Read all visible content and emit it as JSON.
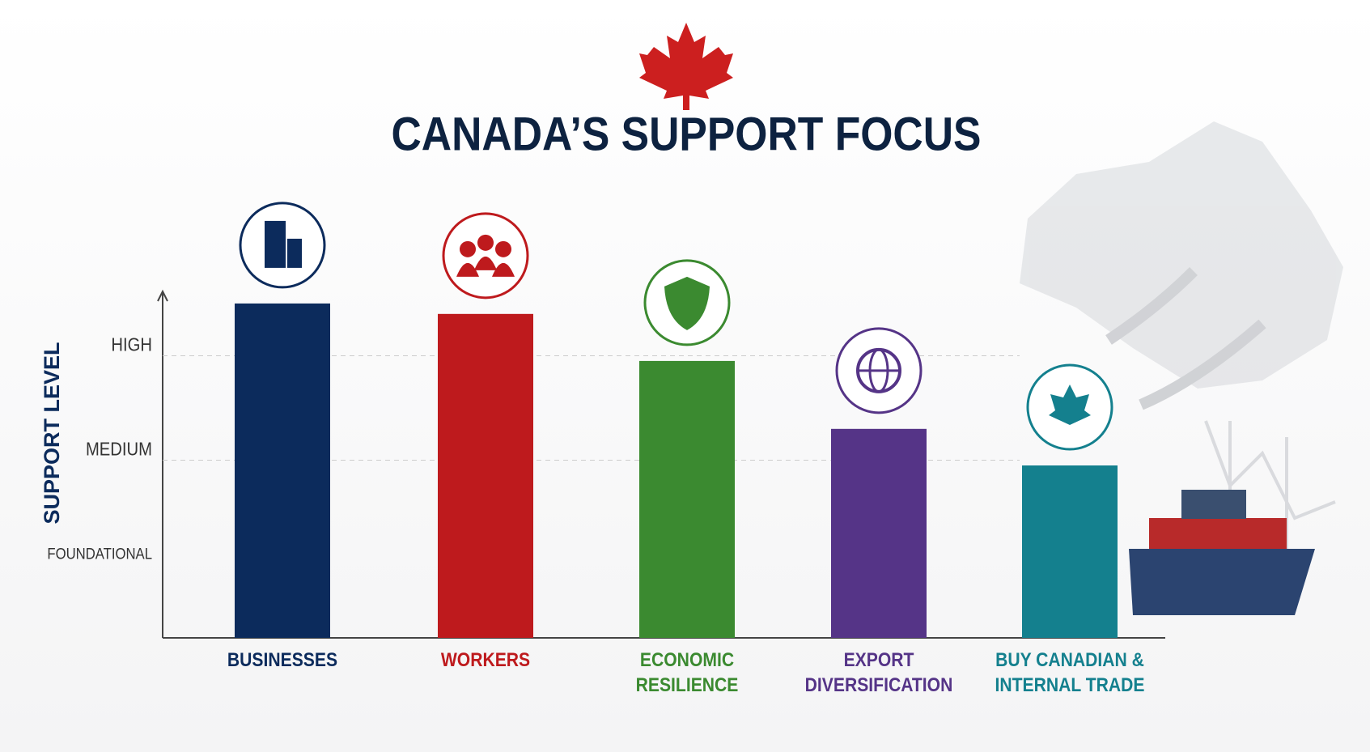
{
  "chart_data": {
    "type": "bar",
    "title": "CANADA’S SUPPORT FOCUS",
    "y_label": "SUPPORT LEVEL",
    "categories": [
      "BUSINESSES",
      "WORKERS",
      "ECONOMIC\nRESILIENCE",
      "EXPORT\nDIVERSIFICATION",
      "BUY CANADIAN &\nINTERNAL TRADE"
    ],
    "values": [
      3.5,
      3.4,
      2.95,
      2.3,
      1.95
    ],
    "colors": [
      "#0c2b5c",
      "#be1a1d",
      "#3b8a30",
      "#553487",
      "#14808e"
    ],
    "ylim": [
      0.3,
      3.6
    ],
    "yticks": [
      {
        "value": 1,
        "label": "FOUNDATIONAL"
      },
      {
        "value": 2,
        "label": "MEDIUM"
      },
      {
        "value": 3,
        "label": "HIGH"
      }
    ],
    "grid": true
  }
}
